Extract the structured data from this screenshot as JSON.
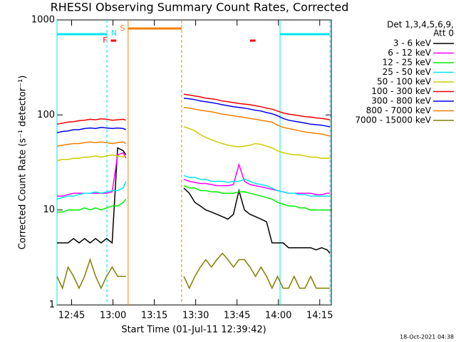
{
  "chart_data": {
    "type": "line",
    "title": "RHESSI Observing Summary Count Rates, Corrected",
    "x_label": "Start Time (01-Jul-11 12:39:42)",
    "y_label": "Corrected Count Rate (s⁻¹ detector⁻¹)",
    "legend_title": [
      "Det 1,3,4,5,6,9,",
      "Att 0"
    ],
    "footer": "18-Oct-2021 04:38",
    "y_scale": "log",
    "xlim": [
      0,
      99.5
    ],
    "ylim": [
      1,
      1000
    ],
    "xticks": [
      {
        "value": 5.3,
        "label": "12:45"
      },
      {
        "value": 20.3,
        "label": "13:00"
      },
      {
        "value": 35.3,
        "label": "13:15"
      },
      {
        "value": 50.3,
        "label": "13:30"
      },
      {
        "value": 65.3,
        "label": "13:45"
      },
      {
        "value": 80.3,
        "label": "14:00"
      },
      {
        "value": 95.3,
        "label": "14:15"
      }
    ],
    "yticks": [
      1,
      10,
      100,
      1000
    ],
    "x": [
      0,
      2,
      4,
      6,
      8,
      10,
      12,
      14,
      16,
      18,
      20,
      22,
      24,
      25,
      35,
      46,
      48,
      50,
      52,
      54,
      56,
      58,
      60,
      62,
      64,
      66,
      68,
      70,
      72,
      74,
      76,
      78,
      80,
      82,
      84,
      86,
      88,
      90,
      92,
      94,
      96,
      98,
      99
    ],
    "series": [
      {
        "name": "3 - 6 keV",
        "color": "#000000",
        "values": [
          4.5,
          4.5,
          4.5,
          5,
          4.5,
          5,
          4.5,
          5,
          4.5,
          5,
          4.5,
          45,
          42,
          38,
          null,
          17,
          15,
          12,
          11,
          10,
          9.5,
          9,
          8.5,
          8,
          9,
          16,
          10,
          9,
          8.5,
          8,
          7.5,
          4.5,
          4.5,
          4.5,
          4,
          4,
          4,
          4,
          4,
          3.8,
          4,
          3.8,
          3.5
        ]
      },
      {
        "name": "6 - 12 keV",
        "color": "#ff00ff",
        "values": [
          14,
          14,
          14.5,
          15,
          15,
          15,
          15,
          15,
          15,
          15,
          15.5,
          38,
          40,
          35,
          null,
          21,
          20,
          19.5,
          19,
          19,
          18.5,
          18,
          18,
          18,
          18.5,
          30,
          20,
          18.5,
          18,
          17.5,
          17,
          16.5,
          16,
          15.5,
          15,
          15,
          15,
          15,
          15,
          14.5,
          14.5,
          15,
          15
        ]
      },
      {
        "name": "12 - 25 keV",
        "color": "#00ee00",
        "values": [
          9.5,
          9.5,
          10,
          10,
          10,
          10.5,
          10,
          10.5,
          10,
          10.5,
          11,
          11,
          12,
          13,
          null,
          18,
          17,
          17,
          16,
          16,
          15.5,
          15.5,
          15,
          15,
          15,
          15.5,
          15.5,
          15,
          14.5,
          14,
          13.5,
          13,
          12,
          11.5,
          11,
          11,
          10.5,
          10.5,
          10,
          10,
          10,
          10,
          10
        ]
      },
      {
        "name": "25 - 50 keV",
        "color": "#00e5ee",
        "values": [
          13,
          13.5,
          14,
          14,
          14.5,
          15,
          15,
          15.5,
          15,
          15.5,
          16,
          16,
          17,
          20,
          null,
          23,
          22,
          22,
          21,
          21,
          20,
          20,
          20,
          19.5,
          20,
          20,
          21,
          20,
          19,
          18.5,
          18,
          17,
          16,
          15.5,
          15,
          15,
          14.5,
          14.5,
          14,
          14,
          14,
          14,
          14
        ]
      },
      {
        "name": "50 - 100 keV",
        "color": "#cccc00",
        "values": [
          33,
          34,
          34,
          35,
          35,
          36,
          36,
          37,
          36,
          37,
          38,
          37,
          36,
          38,
          null,
          75,
          72,
          68,
          62,
          58,
          55,
          52,
          50,
          48,
          47,
          46,
          47,
          48,
          50,
          49,
          47,
          45,
          42,
          40,
          39,
          38,
          38,
          37,
          36,
          36,
          35,
          35,
          35
        ]
      },
      {
        "name": "100 - 300 keV",
        "color": "#ee0000",
        "values": [
          80,
          82,
          84,
          85,
          87,
          88,
          90,
          89,
          91,
          90,
          88,
          89,
          90,
          88,
          null,
          165,
          162,
          158,
          155,
          150,
          148,
          145,
          140,
          138,
          135,
          132,
          130,
          128,
          125,
          122,
          118,
          115,
          110,
          105,
          102,
          100,
          98,
          96,
          95,
          93,
          92,
          90,
          89
        ]
      },
      {
        "name": "300 - 800 keV",
        "color": "#0000ee",
        "values": [
          65,
          67,
          68,
          70,
          70,
          72,
          73,
          72,
          74,
          73,
          72,
          73,
          72,
          70,
          null,
          150,
          148,
          145,
          140,
          138,
          135,
          132,
          128,
          125,
          122,
          120,
          118,
          115,
          112,
          110,
          106,
          103,
          98,
          92,
          88,
          86,
          84,
          82,
          80,
          79,
          78,
          76,
          75
        ]
      },
      {
        "name": "800 - 7000 keV",
        "color": "#f08000",
        "values": [
          47,
          48,
          49,
          50,
          50,
          51,
          52,
          51,
          52,
          51,
          50,
          51,
          52,
          50,
          null,
          120,
          118,
          115,
          112,
          110,
          108,
          105,
          102,
          100,
          98,
          96,
          94,
          92,
          90,
          88,
          86,
          84,
          78,
          74,
          72,
          70,
          68,
          66,
          65,
          64,
          63,
          61,
          60
        ]
      },
      {
        "name": "7000 - 15000 keV",
        "color": "#808000",
        "values": [
          2,
          1.5,
          2.5,
          2,
          1.5,
          2,
          3,
          2,
          1.5,
          2,
          2.5,
          2,
          2,
          2,
          null,
          2,
          1.5,
          2,
          2.5,
          3,
          2.5,
          3,
          3.5,
          3,
          2.5,
          3,
          3,
          2.5,
          2,
          2.5,
          2,
          1.5,
          2,
          1.5,
          1.5,
          2,
          1.5,
          1.5,
          2,
          1.5,
          1.5,
          1.5,
          1.5
        ]
      }
    ],
    "flags": [
      {
        "label": "N",
        "color": "#00e5ee",
        "spans": [
          [
            0,
            18.1
          ],
          [
            80.9,
            99
          ]
        ]
      },
      {
        "label": "S",
        "color": "#f08000",
        "spans": [
          [
            25.8,
            45.2
          ]
        ]
      },
      {
        "label": "F",
        "color": "#ff0000",
        "spans": [
          [
            19.5,
            21.5
          ],
          [
            70,
            72
          ]
        ]
      }
    ]
  }
}
